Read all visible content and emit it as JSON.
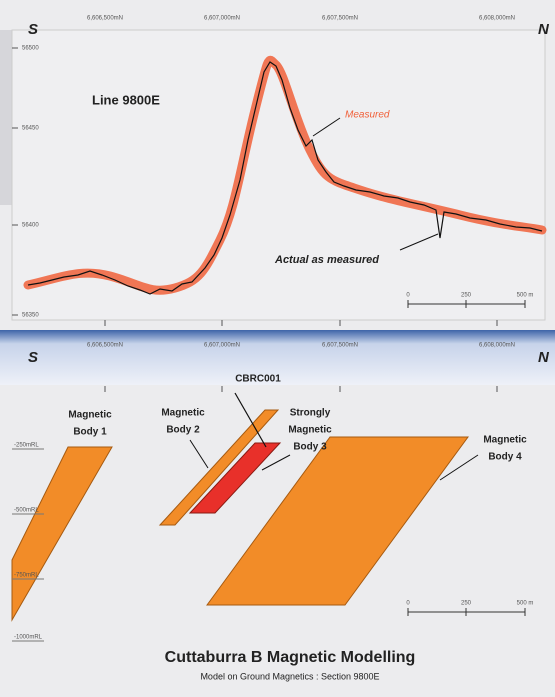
{
  "top": {
    "left": "S",
    "right": "N",
    "xticks": [
      "6,606,500mN",
      "6,607,000mN",
      "6,607,500mN",
      "6,608,000mN"
    ],
    "yticks": [
      "56500",
      "56450",
      "56400",
      "56350"
    ],
    "title": "Line 9800E",
    "measured": "Measured",
    "actual": "Actual as measured",
    "scale": [
      "0",
      "250",
      "500 m"
    ]
  },
  "bottom": {
    "left": "S",
    "right": "N",
    "xticks": [
      "6,606,500mN",
      "6,607,000mN",
      "6,607,500mN",
      "6,608,000mN"
    ],
    "drillhole": "CBRC001",
    "bodies": [
      [
        "Magnetic",
        "Body 1"
      ],
      [
        "Magnetic",
        "Body 2"
      ],
      [
        "Strongly",
        "Magnetic",
        "Body 3"
      ],
      [
        "Magnetic",
        "Body 4"
      ]
    ],
    "depths": [
      "-250mRL",
      "-500mRL",
      "-750mRL",
      "-1000mRL"
    ],
    "scale": [
      "0",
      "250",
      "500 m"
    ],
    "title": "Cuttaburra B  Magnetic Modelling",
    "subtitle": "Model on Ground Magnetics : Section 9800E"
  }
}
